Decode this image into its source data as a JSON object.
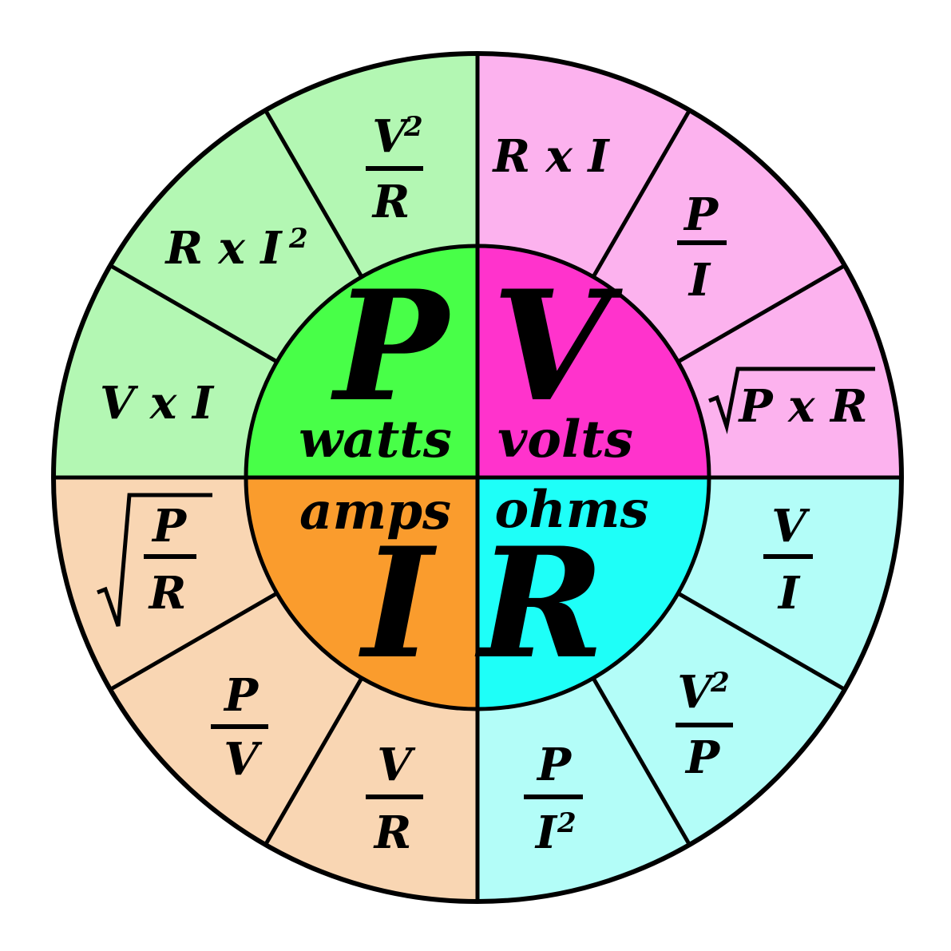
{
  "colors": {
    "inner_power": "#48FF48",
    "inner_voltage": "#FF33CC",
    "inner_current": "#FA9C2D",
    "inner_resistance": "#1EFFF8",
    "outer_power": "#B3F7B3",
    "outer_voltage": "#FCB2EE",
    "outer_current": "#F9D6B3",
    "outer_resistance": "#B3FDF8",
    "stroke": "#000000"
  },
  "quadrants": {
    "power": {
      "symbol": "P",
      "unit": "watts",
      "formulas": [
        {
          "type": "text",
          "parts": [
            "V x I"
          ]
        },
        {
          "type": "text",
          "parts": [
            "R x I",
            "2"
          ]
        },
        {
          "type": "fraction",
          "numerator": "V",
          "numerator_sup": "2",
          "denominator": "R"
        }
      ]
    },
    "voltage": {
      "symbol": "V",
      "unit": "volts",
      "formulas": [
        {
          "type": "text",
          "parts": [
            "R x I"
          ]
        },
        {
          "type": "fraction",
          "numerator": "P",
          "denominator": "I"
        },
        {
          "type": "sqrt",
          "parts": [
            "P x R"
          ]
        }
      ]
    },
    "current": {
      "symbol": "I",
      "unit": "amps",
      "formulas": [
        {
          "type": "sqrt-fraction",
          "numerator": "P",
          "denominator": "R"
        },
        {
          "type": "fraction",
          "numerator": "P",
          "denominator": "V"
        },
        {
          "type": "fraction",
          "numerator": "V",
          "denominator": "R"
        }
      ]
    },
    "resistance": {
      "symbol": "R",
      "unit": "ohms",
      "formulas": [
        {
          "type": "fraction",
          "numerator": "V",
          "denominator": "I"
        },
        {
          "type": "fraction",
          "numerator": "V",
          "numerator_sup": "2",
          "denominator": "P"
        },
        {
          "type": "fraction",
          "numerator": "P",
          "denominator": "I",
          "denominator_sup": "2"
        }
      ]
    }
  }
}
